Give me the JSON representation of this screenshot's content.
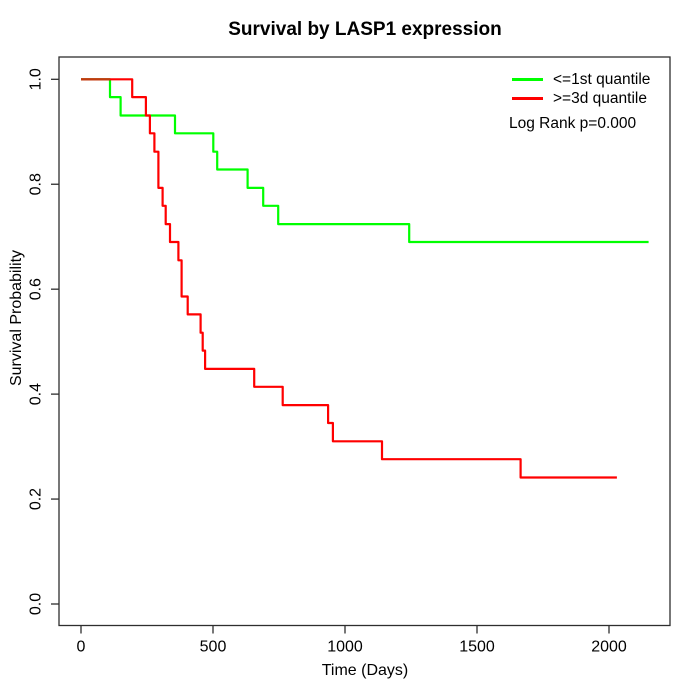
{
  "title": "Survival by LASP1 expression",
  "legend": {
    "entries": [
      {
        "label": "<=1st quantile",
        "color": "#00ff00"
      },
      {
        "label": ">=3d quantile",
        "color": "#ff0000"
      }
    ],
    "note": "Log Rank p=0.000"
  },
  "colors": {
    "curve_low": "#00ff00",
    "curve_high": "#ff0000",
    "curve_overlap": "#bf3a0f",
    "axis": "#2e2e2e",
    "text": "#000000",
    "background": "#ffffff"
  },
  "chart_data": {
    "type": "line",
    "subtype": "kaplan-meier-step",
    "title": "Survival by LASP1 expression",
    "xlabel": "Time (Days)",
    "ylabel": "Survival Probability",
    "xlim": [
      0,
      2175
    ],
    "ylim": [
      0.0,
      1.0
    ],
    "x_ticks": [
      0,
      500,
      1000,
      1500,
      2000
    ],
    "x_tick_labels": [
      "0",
      "500",
      "1000",
      "1500",
      "2000"
    ],
    "y_ticks": [
      0.0,
      0.2,
      0.4,
      0.6,
      0.8,
      1.0
    ],
    "y_tick_labels": [
      "0.0",
      "0.2",
      "0.4",
      "0.6",
      "0.8",
      "1.0"
    ],
    "grid": false,
    "legend_position": "top-right",
    "annotation": "Log Rank p=0.000",
    "series": [
      {
        "name": "<=1st quantile",
        "color": "#00ff00",
        "steps": [
          [
            0,
            1.0
          ],
          [
            110,
            0.966
          ],
          [
            150,
            0.931
          ],
          [
            356,
            0.897
          ],
          [
            501,
            0.862
          ],
          [
            516,
            0.828
          ],
          [
            631,
            0.793
          ],
          [
            690,
            0.759
          ],
          [
            747,
            0.724
          ],
          [
            1243,
            0.69
          ]
        ],
        "end_time": 2150,
        "final_value": 0.69
      },
      {
        "name": ">=3d quantile",
        "color": "#ff0000",
        "steps": [
          [
            0,
            1.0
          ],
          [
            194,
            0.966
          ],
          [
            246,
            0.931
          ],
          [
            261,
            0.897
          ],
          [
            278,
            0.862
          ],
          [
            293,
            0.793
          ],
          [
            309,
            0.759
          ],
          [
            321,
            0.724
          ],
          [
            337,
            0.69
          ],
          [
            369,
            0.655
          ],
          [
            381,
            0.586
          ],
          [
            404,
            0.552
          ],
          [
            453,
            0.517
          ],
          [
            461,
            0.483
          ],
          [
            470,
            0.448
          ],
          [
            656,
            0.414
          ],
          [
            764,
            0.379
          ],
          [
            936,
            0.345
          ],
          [
            954,
            0.31
          ],
          [
            1140,
            0.276
          ],
          [
            1665,
            0.241
          ]
        ],
        "end_time": 2030,
        "final_value": 0.241
      }
    ],
    "overlap_segment": {
      "from_t": 0,
      "to_t": 110,
      "s": 1.0,
      "color": "#bf3a0f"
    }
  }
}
